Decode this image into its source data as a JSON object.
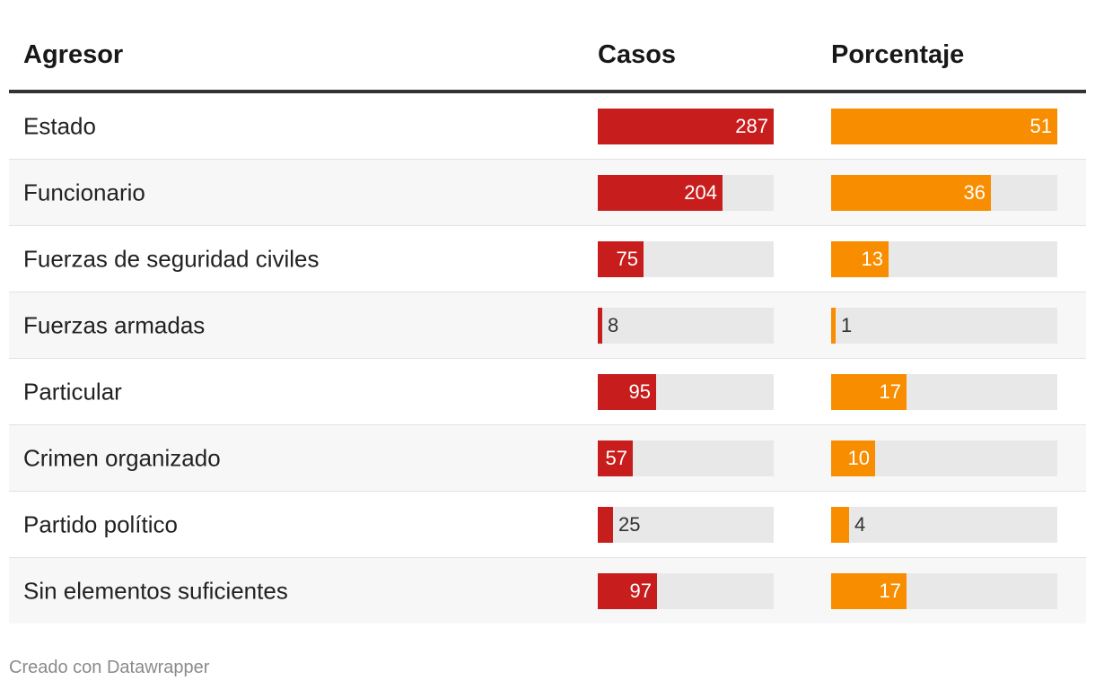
{
  "table": {
    "headers": {
      "agresor": "Agresor",
      "casos": "Casos",
      "porcentaje": "Porcentaje"
    },
    "colors": {
      "casos": "#c81d1d",
      "porcentaje": "#f98d00",
      "track": "#e8e8e8"
    },
    "rows": [
      {
        "agresor": "Estado",
        "casos": 287,
        "porcentaje": 51
      },
      {
        "agresor": "Funcionario",
        "casos": 204,
        "porcentaje": 36
      },
      {
        "agresor": "Fuerzas de seguridad civiles",
        "casos": 75,
        "porcentaje": 13
      },
      {
        "agresor": "Fuerzas armadas",
        "casos": 8,
        "porcentaje": 1
      },
      {
        "agresor": "Particular",
        "casos": 95,
        "porcentaje": 17
      },
      {
        "agresor": "Crimen organizado",
        "casos": 57,
        "porcentaje": 10
      },
      {
        "agresor": "Partido político",
        "casos": 25,
        "porcentaje": 4
      },
      {
        "agresor": "Sin elementos suficientes",
        "casos": 97,
        "porcentaje": 17
      }
    ]
  },
  "chart_data": {
    "type": "table",
    "title": "",
    "columns": [
      "Agresor",
      "Casos",
      "Porcentaje"
    ],
    "categories": [
      "Estado",
      "Funcionario",
      "Fuerzas de seguridad civiles",
      "Fuerzas armadas",
      "Particular",
      "Crimen organizado",
      "Partido político",
      "Sin elementos suficientes"
    ],
    "series": [
      {
        "name": "Casos",
        "values": [
          287,
          204,
          75,
          8,
          95,
          57,
          25,
          97
        ],
        "max": 287
      },
      {
        "name": "Porcentaje",
        "values": [
          51,
          36,
          13,
          1,
          17,
          10,
          4,
          17
        ],
        "max": 51
      }
    ]
  },
  "footer": {
    "credit": "Creado con Datawrapper"
  }
}
